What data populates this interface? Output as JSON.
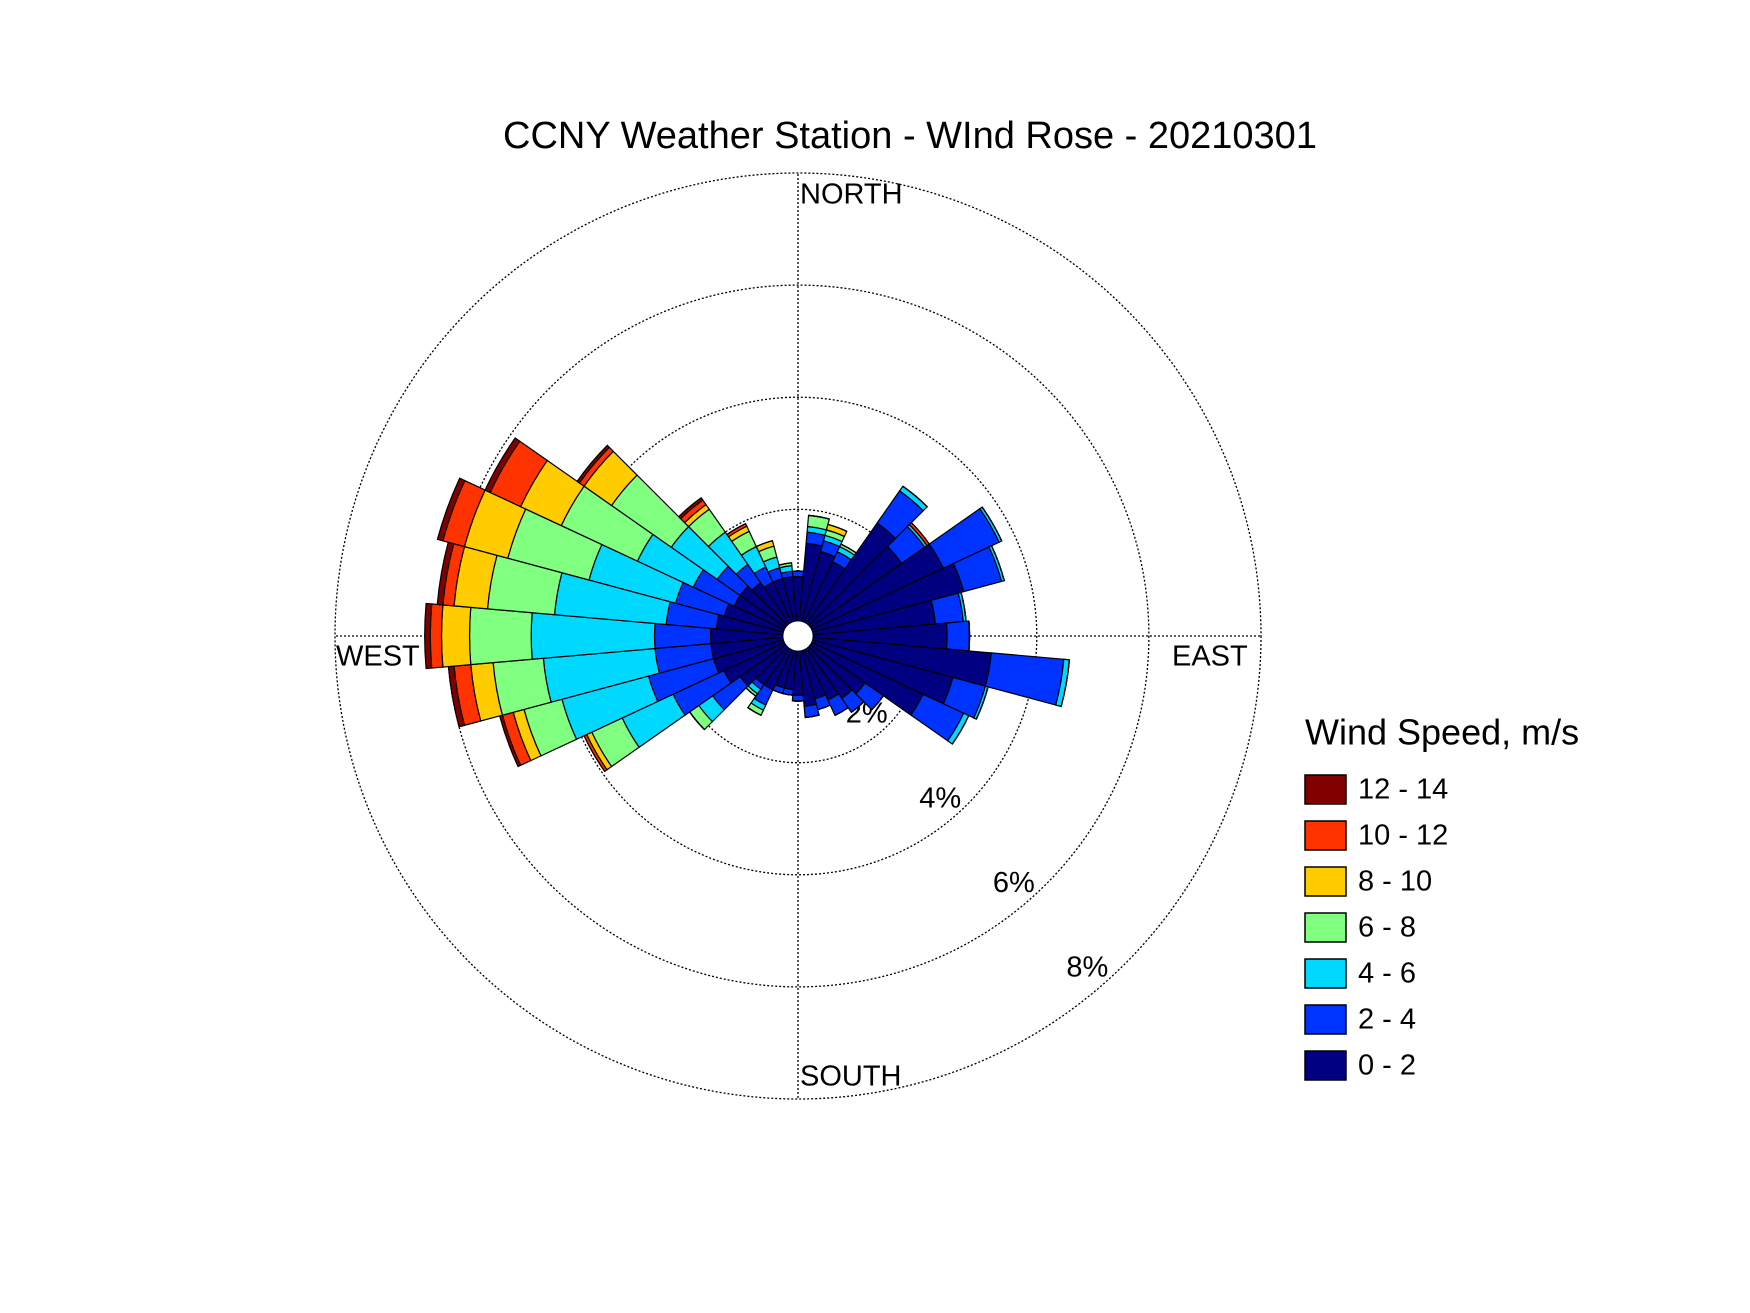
{
  "chart_data": {
    "type": "windrose",
    "title": "CCNY Weather Station - WInd Rose - 20210301",
    "legend_title": "Wind Speed, m/s",
    "direction_labels": [
      "NORTH",
      "EAST",
      "SOUTH",
      "WEST"
    ],
    "directions": [
      0,
      10,
      20,
      30,
      40,
      50,
      60,
      70,
      80,
      90,
      100,
      110,
      120,
      130,
      140,
      150,
      160,
      170,
      180,
      190,
      200,
      210,
      220,
      230,
      240,
      250,
      260,
      270,
      280,
      290,
      300,
      310,
      320,
      330,
      340,
      350
    ],
    "rlim": [
      0,
      8
    ],
    "rticks": [
      {
        "value": 2,
        "label": "2%"
      },
      {
        "value": 4,
        "label": "4%"
      },
      {
        "value": 6,
        "label": "6%"
      },
      {
        "value": 8,
        "label": "8%"
      }
    ],
    "series": [
      {
        "name": "0 - 2",
        "color": "#000080",
        "values": [
          0.8,
          1.4,
          1.3,
          1.2,
          2.2,
          2.0,
          2.6,
          2.8,
          2.2,
          2.4,
          3.2,
          2.6,
          2.2,
          1.2,
          1.1,
          1.0,
          0.9,
          1.0,
          0.8,
          0.7,
          0.7,
          0.8,
          0.8,
          1.0,
          1.2,
          1.3,
          1.3,
          1.3,
          1.2,
          1.1,
          1.0,
          1.0,
          0.9,
          0.8,
          0.8,
          0.8
        ]
      },
      {
        "name": "2 - 4",
        "color": "#0033ff",
        "values": [
          0.1,
          0.2,
          0.2,
          0.2,
          0.7,
          0.5,
          1.1,
          0.7,
          0.5,
          0.4,
          1.3,
          0.6,
          0.8,
          0.4,
          0.3,
          0.3,
          0.2,
          0.2,
          0.1,
          0.1,
          0.1,
          0.3,
          0.1,
          0.6,
          1.0,
          1.2,
          1.0,
          1.0,
          0.9,
          0.9,
          0.8,
          0.5,
          0.4,
          0.3,
          0.2,
          0.1
        ]
      },
      {
        "name": "4 - 6",
        "color": "#00d9ff",
        "values": [
          0,
          0.1,
          0.1,
          0.1,
          0.1,
          0.05,
          0.05,
          0.05,
          0.05,
          0,
          0.1,
          0.05,
          0.1,
          0,
          0,
          0,
          0,
          0,
          0,
          0,
          0,
          0.1,
          0.1,
          0.3,
          1.0,
          1.6,
          2.0,
          2.2,
          2.0,
          1.6,
          1.1,
          1.0,
          0.7,
          0.4,
          0.2,
          0.1
        ]
      },
      {
        "name": "6 - 8",
        "color": "#80ff80",
        "values": [
          0,
          0.2,
          0.1,
          0.05,
          0,
          0,
          0,
          0,
          0,
          0,
          0,
          0,
          0,
          0,
          0,
          0,
          0,
          0,
          0,
          0,
          0,
          0.1,
          0.05,
          0.2,
          0.6,
          0.7,
          0.9,
          1.1,
          1.2,
          1.5,
          1.5,
          1.3,
          0.5,
          0.3,
          0.2,
          0.05
        ]
      },
      {
        "name": "8 - 10",
        "color": "#ffcc00",
        "values": [
          0,
          0,
          0.1,
          0,
          0,
          0,
          0,
          0,
          0,
          0,
          0,
          0,
          0,
          0,
          0,
          0,
          0,
          0,
          0,
          0,
          0,
          0,
          0,
          0,
          0.1,
          0.2,
          0.4,
          0.5,
          0.6,
          0.8,
          0.8,
          0.6,
          0.1,
          0.1,
          0.1,
          0
        ]
      },
      {
        "name": "10 - 12",
        "color": "#ff3300",
        "values": [
          0,
          0,
          0,
          0,
          0,
          0.05,
          0,
          0,
          0,
          0,
          0,
          0,
          0,
          0,
          0,
          0,
          0,
          0,
          0,
          0,
          0,
          0,
          0,
          0,
          0.05,
          0.2,
          0.3,
          0.2,
          0.2,
          0.4,
          0.6,
          0.1,
          0.1,
          0.05,
          0,
          0
        ]
      },
      {
        "name": "12 - 14",
        "color": "#800000",
        "values": [
          0,
          0,
          0,
          0,
          0,
          0,
          0,
          0,
          0,
          0,
          0,
          0,
          0,
          0,
          0,
          0,
          0,
          0,
          0,
          0,
          0,
          0,
          0,
          0,
          0,
          0.05,
          0.1,
          0.1,
          0.1,
          0.1,
          0.1,
          0.05,
          0.05,
          0,
          0,
          0
        ]
      }
    ]
  }
}
